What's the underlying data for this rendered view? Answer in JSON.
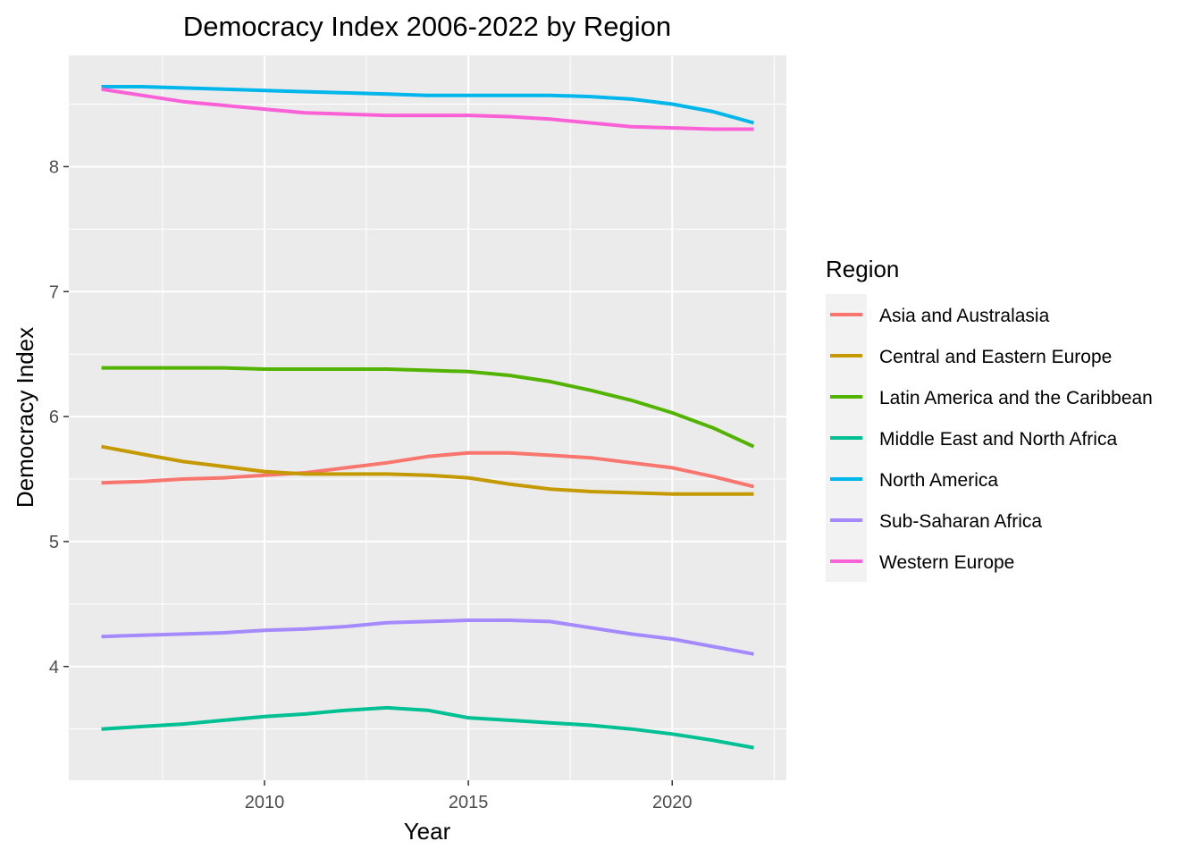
{
  "chart_data": {
    "type": "line",
    "title": "Democracy Index 2006-2022 by Region",
    "xlabel": "Year",
    "ylabel": "Democracy Index",
    "xlim": [
      2005.2,
      2022.8
    ],
    "ylim": [
      3.09,
      8.89
    ],
    "x_ticks": [
      2010,
      2015,
      2020
    ],
    "y_ticks": [
      4,
      5,
      6,
      7,
      8
    ],
    "x_tick_labels": [
      "2010",
      "2015",
      "2020"
    ],
    "y_tick_labels": [
      "4",
      "5",
      "6",
      "7",
      "8"
    ],
    "grid": true,
    "legend_title": "Region",
    "legend_position": "right",
    "panel_background": "#ebebeb",
    "x": [
      2006,
      2007,
      2008,
      2009,
      2010,
      2011,
      2012,
      2013,
      2014,
      2015,
      2016,
      2017,
      2018,
      2019,
      2020,
      2021,
      2022
    ],
    "series": [
      {
        "name": "Asia and Australasia",
        "color": "#F8766D",
        "values": [
          5.47,
          5.48,
          5.5,
          5.51,
          5.53,
          5.55,
          5.59,
          5.63,
          5.68,
          5.71,
          5.71,
          5.69,
          5.67,
          5.63,
          5.59,
          5.52,
          5.44
        ]
      },
      {
        "name": "Central and Eastern Europe",
        "color": "#C49A00",
        "values": [
          5.76,
          5.7,
          5.64,
          5.6,
          5.56,
          5.54,
          5.54,
          5.54,
          5.53,
          5.51,
          5.46,
          5.42,
          5.4,
          5.39,
          5.38,
          5.38,
          5.38
        ]
      },
      {
        "name": "Latin America and the Caribbean",
        "color": "#53B400",
        "values": [
          6.39,
          6.39,
          6.39,
          6.39,
          6.38,
          6.38,
          6.38,
          6.38,
          6.37,
          6.36,
          6.33,
          6.28,
          6.21,
          6.13,
          6.03,
          5.91,
          5.76
        ]
      },
      {
        "name": "Middle East and North Africa",
        "color": "#00C094",
        "values": [
          3.5,
          3.52,
          3.54,
          3.57,
          3.6,
          3.62,
          3.65,
          3.67,
          3.65,
          3.59,
          3.57,
          3.55,
          3.53,
          3.5,
          3.46,
          3.41,
          3.35
        ]
      },
      {
        "name": "North America",
        "color": "#00B6EB",
        "values": [
          8.64,
          8.64,
          8.63,
          8.62,
          8.61,
          8.6,
          8.59,
          8.58,
          8.57,
          8.57,
          8.57,
          8.57,
          8.56,
          8.54,
          8.5,
          8.44,
          8.35
        ]
      },
      {
        "name": "Sub-Saharan Africa",
        "color": "#A58AFF",
        "values": [
          4.24,
          4.25,
          4.26,
          4.27,
          4.29,
          4.3,
          4.32,
          4.35,
          4.36,
          4.37,
          4.37,
          4.36,
          4.31,
          4.26,
          4.22,
          4.16,
          4.1
        ]
      },
      {
        "name": "Western Europe",
        "color": "#FB61D7",
        "values": [
          8.62,
          8.57,
          8.52,
          8.49,
          8.46,
          8.43,
          8.42,
          8.41,
          8.41,
          8.41,
          8.4,
          8.38,
          8.35,
          8.32,
          8.31,
          8.3,
          8.3
        ]
      }
    ]
  }
}
